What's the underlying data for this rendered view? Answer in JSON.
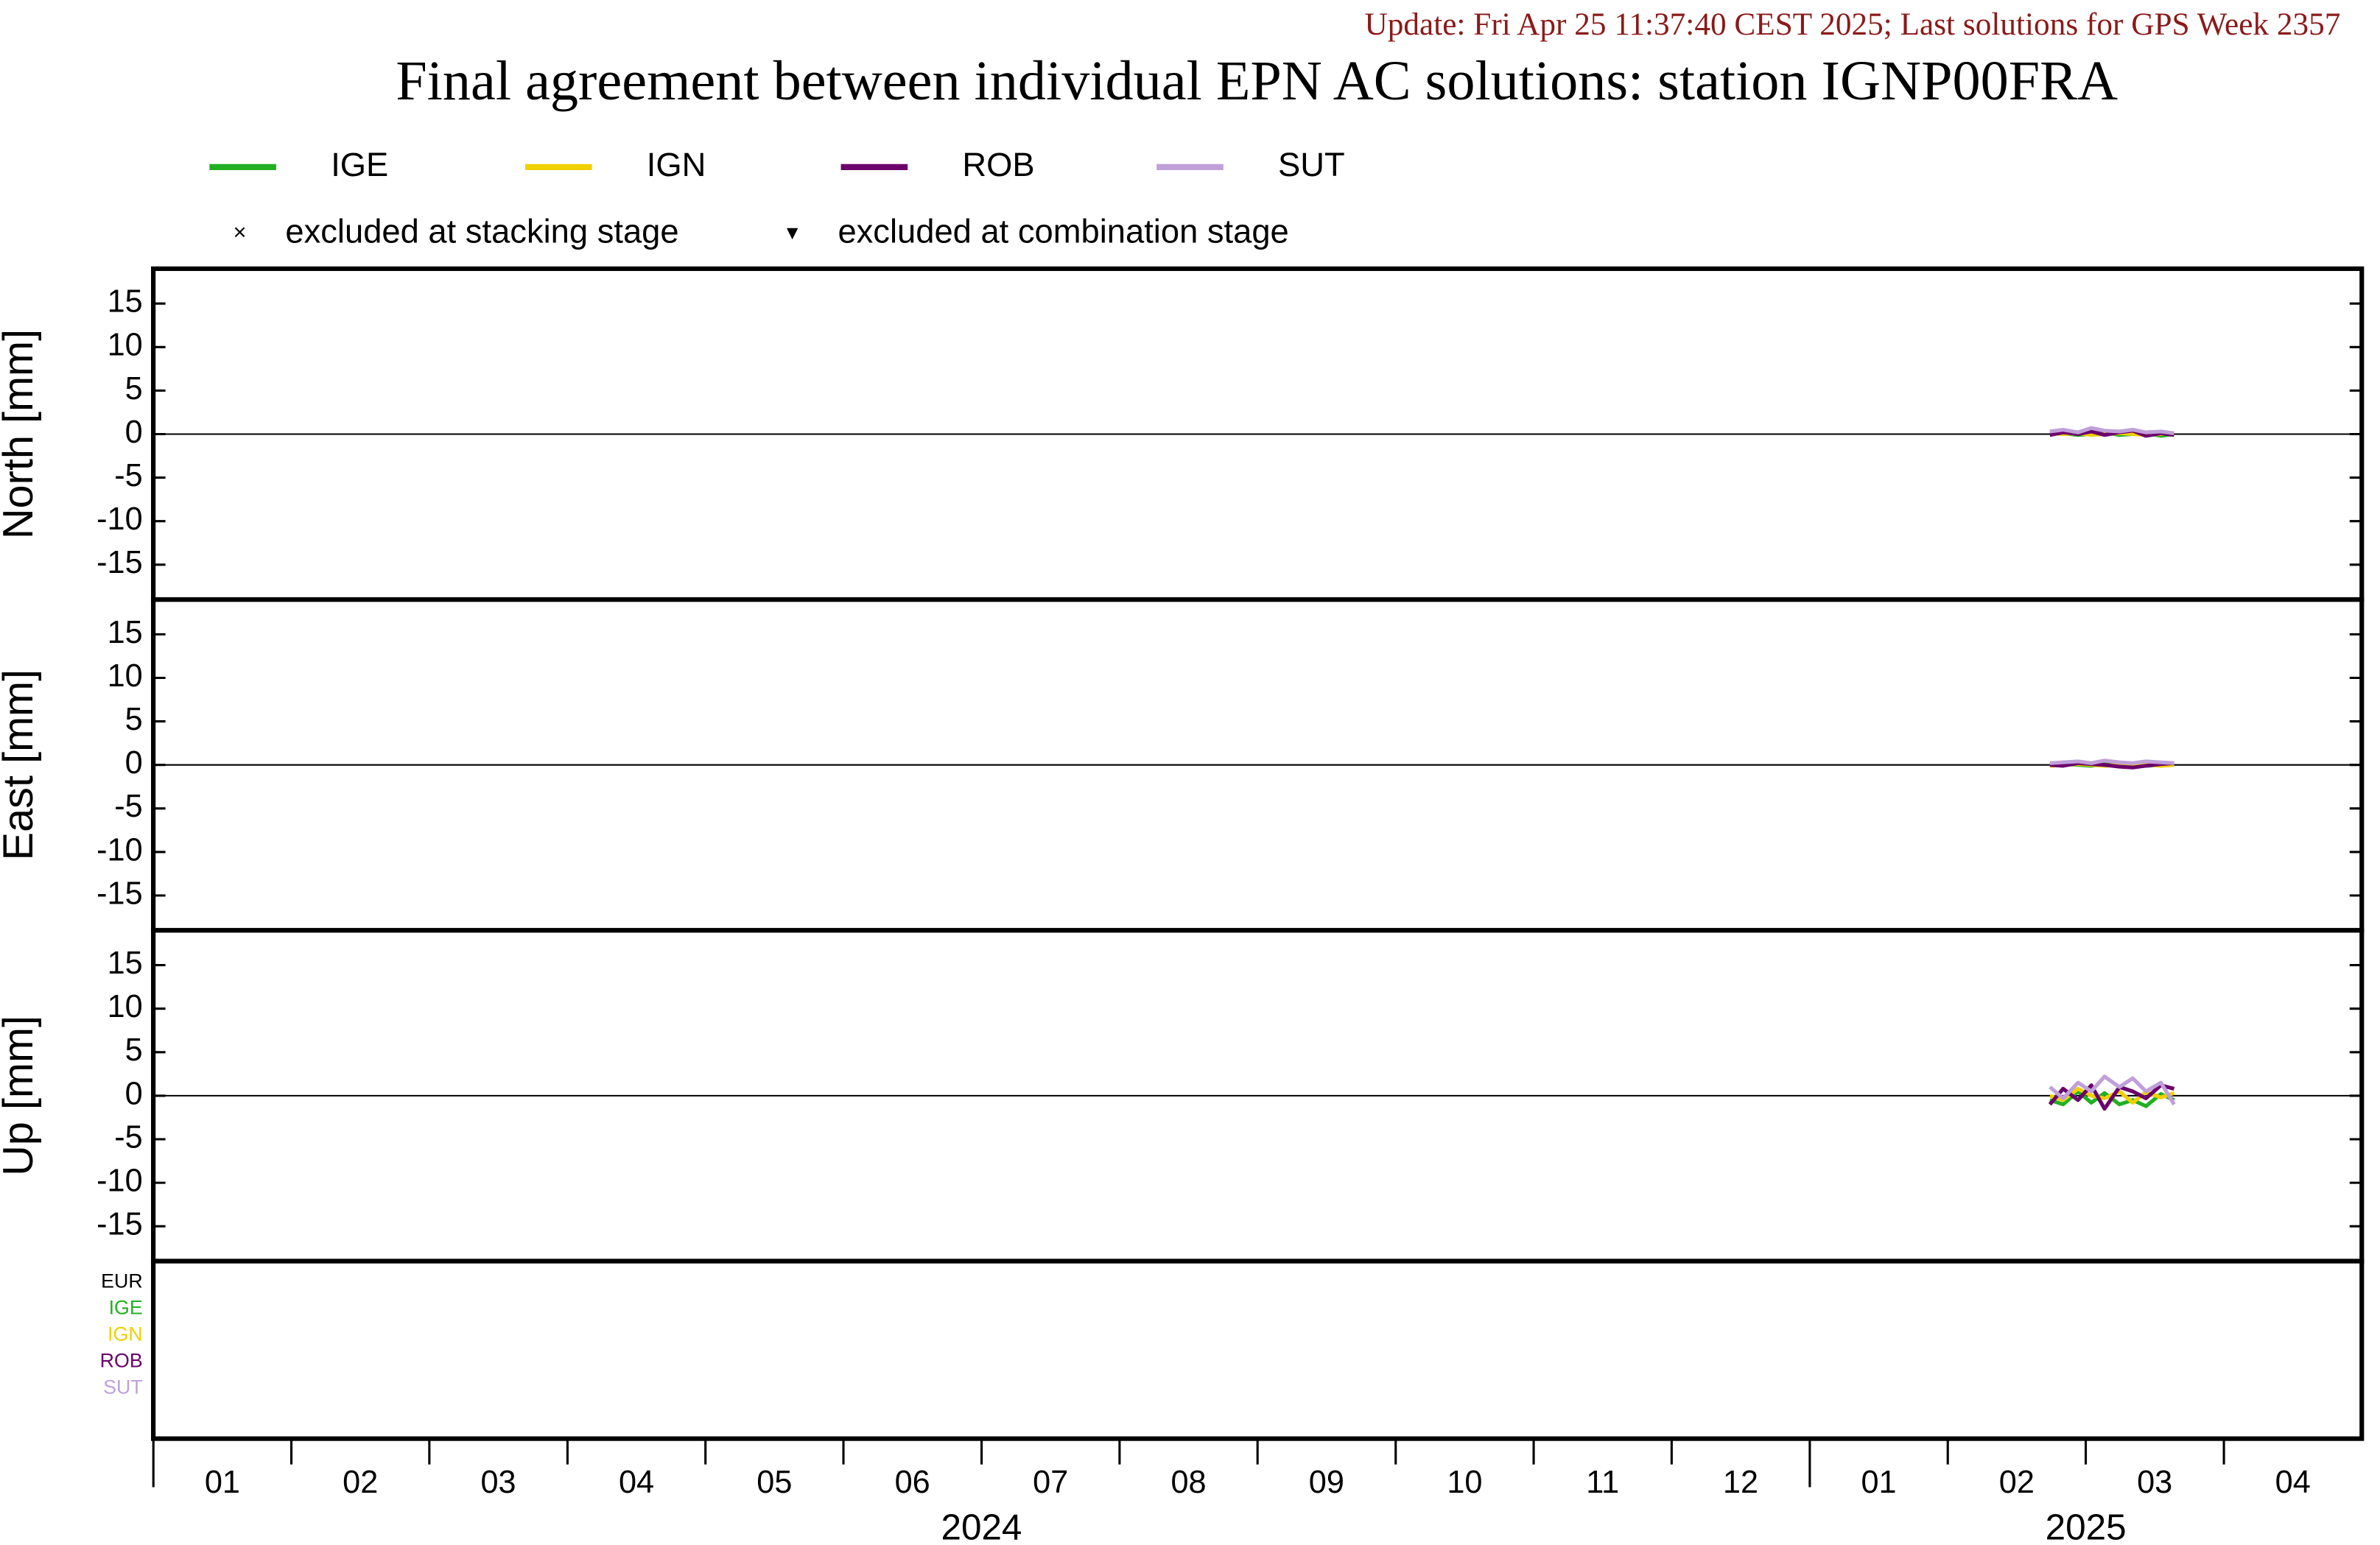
{
  "header": {
    "update": "Update: Fri Apr 25 11:37:40 CEST 2025; Last solutions for GPS Week 2357",
    "title": "Final agreement between individual EPN AC solutions: station IGNP00FRA"
  },
  "legend_notes": [
    {
      "symbol": "×",
      "text": "excluded at stacking stage"
    },
    {
      "symbol": "▾",
      "text": "excluded at combination stage"
    }
  ],
  "ac_labels": [
    {
      "text": "EUR",
      "color": "#000000"
    },
    {
      "text": "IGE",
      "color": "#22b022"
    },
    {
      "text": "IGN",
      "color": "#f0d000"
    },
    {
      "text": "ROB",
      "color": "#6b006b"
    },
    {
      "text": "SUT",
      "color": "#c0a0d8"
    }
  ],
  "x_axis": {
    "xlim": [
      2024.0,
      2025.3333
    ],
    "xticks": [
      {
        "value": 2024.0417,
        "label": "01"
      },
      {
        "value": 2024.125,
        "label": "02"
      },
      {
        "value": 2024.2083,
        "label": "03"
      },
      {
        "value": 2024.2917,
        "label": "04"
      },
      {
        "value": 2024.375,
        "label": "05"
      },
      {
        "value": 2024.4583,
        "label": "06"
      },
      {
        "value": 2024.5417,
        "label": "07"
      },
      {
        "value": 2024.625,
        "label": "08"
      },
      {
        "value": 2024.7083,
        "label": "09"
      },
      {
        "value": 2024.7917,
        "label": "10"
      },
      {
        "value": 2024.875,
        "label": "11"
      },
      {
        "value": 2024.9583,
        "label": "12"
      },
      {
        "value": 2025.0417,
        "label": "01"
      },
      {
        "value": 2025.125,
        "label": "02"
      },
      {
        "value": 2025.2083,
        "label": "03"
      },
      {
        "value": 2025.2917,
        "label": "04"
      }
    ],
    "years": [
      {
        "value": 2024.5,
        "label": "2024"
      },
      {
        "value": 2025.1667,
        "label": "2025"
      }
    ]
  },
  "chart_data": [
    {
      "type": "line",
      "ylabel": "North [mm]",
      "ylim": [
        -19,
        19
      ],
      "yticks": [
        -15,
        -10,
        -5,
        0,
        5,
        10,
        15
      ],
      "x": [
        2025.145,
        2025.153,
        2025.162,
        2025.17,
        2025.178,
        2025.187,
        2025.195,
        2025.203,
        2025.212,
        2025.22
      ],
      "series": [
        {
          "name": "IGE",
          "color": "#22b022",
          "values": [
            0,
            0.1,
            -0.1,
            0,
            0.2,
            -0.1,
            0,
            0.1,
            -0.2,
            0
          ]
        },
        {
          "name": "IGN",
          "color": "#f0d000",
          "values": [
            0.1,
            0,
            0.1,
            -0.1,
            0,
            0.1,
            0,
            -0.1,
            0,
            0.1
          ]
        },
        {
          "name": "ROB",
          "color": "#6b006b",
          "values": [
            -0.1,
            0.2,
            0,
            0.3,
            -0.1,
            0.2,
            0.4,
            -0.2,
            0.1,
            -0.1
          ]
        },
        {
          "name": "SUT",
          "color": "#c0a0d8",
          "values": [
            0.3,
            0.5,
            0.2,
            0.7,
            0.4,
            0.3,
            0.5,
            0.2,
            0.3,
            0.1
          ]
        }
      ]
    },
    {
      "type": "line",
      "ylabel": "East [mm]",
      "ylim": [
        -19,
        19
      ],
      "yticks": [
        -15,
        -10,
        -5,
        0,
        5,
        10,
        15
      ],
      "x": [
        2025.145,
        2025.153,
        2025.162,
        2025.17,
        2025.178,
        2025.187,
        2025.195,
        2025.203,
        2025.212,
        2025.22
      ],
      "series": [
        {
          "values": [
            0,
            0.1,
            0,
            -0.1,
            0.1,
            0,
            0.1,
            -0.1,
            0,
            0.1
          ]
        },
        {
          "values": [
            -0.1,
            0,
            0.1,
            0,
            -0.1,
            0,
            0.1,
            0,
            -0.1,
            0
          ]
        },
        {
          "values": [
            0,
            -0.1,
            0.2,
            0.1,
            0,
            -0.2,
            -0.3,
            -0.1,
            0.1,
            0.2
          ]
        },
        {
          "values": [
            0.2,
            0.3,
            0.4,
            0.2,
            0.5,
            0.3,
            0.2,
            0.4,
            0.3,
            0.2
          ]
        }
      ]
    },
    {
      "type": "line",
      "ylabel": "Up [mm]",
      "ylim": [
        -19,
        19
      ],
      "yticks": [
        -15,
        -10,
        -5,
        0,
        5,
        10,
        15
      ],
      "x": [
        2025.145,
        2025.153,
        2025.162,
        2025.17,
        2025.178,
        2025.187,
        2025.195,
        2025.203,
        2025.212,
        2025.22
      ],
      "series": [
        {
          "values": [
            -0.5,
            -1,
            0.5,
            -0.8,
            0.3,
            -1,
            -0.5,
            -1.2,
            0.2,
            -0.5
          ]
        },
        {
          "values": [
            0,
            -0.5,
            0.8,
            0,
            -0.3,
            0.5,
            -0.8,
            0.4,
            -0.2,
            0.3
          ]
        },
        {
          "values": [
            -1,
            0.8,
            -0.5,
            1.2,
            -1.5,
            1,
            0.5,
            -0.3,
            1.2,
            0.8
          ]
        },
        {
          "values": [
            1,
            -0.3,
            1.5,
            0.5,
            2.2,
            1,
            2,
            0.5,
            1.5,
            -1
          ]
        }
      ]
    }
  ]
}
